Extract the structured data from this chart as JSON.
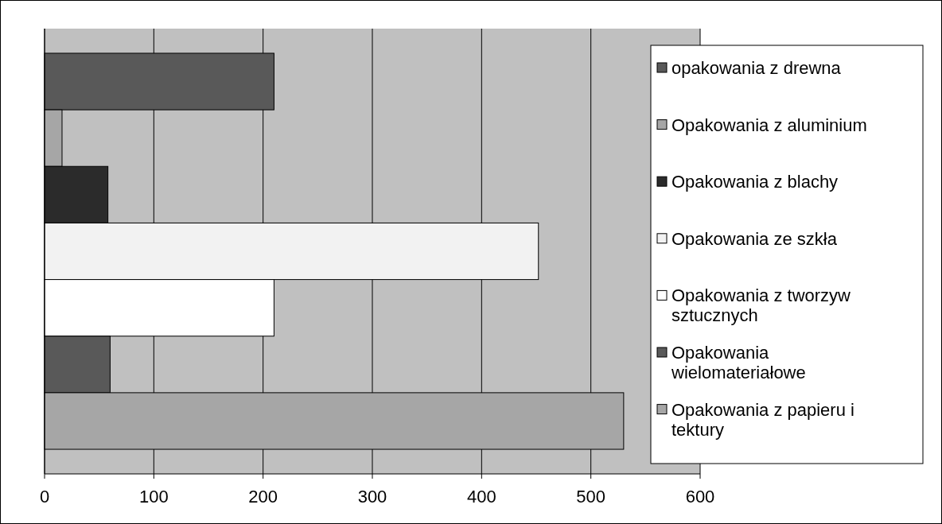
{
  "chart_data": {
    "type": "bar",
    "orientation": "horizontal",
    "categories": [
      null
    ],
    "series": [
      {
        "name": "opakowania z drewna",
        "color": "#595959",
        "values": [
          210
        ]
      },
      {
        "name": "Opakowania z aluminium",
        "color": "#a6a6a6",
        "values": [
          16
        ]
      },
      {
        "name": "Opakowania z blachy",
        "color": "#2b2b2b",
        "values": [
          58
        ]
      },
      {
        "name": "Opakowania ze szkła",
        "color": "#f2f2f2",
        "values": [
          452
        ]
      },
      {
        "name": "Opakowania z tworzyw sztucznych",
        "color": "#ffffff",
        "values": [
          210
        ]
      },
      {
        "name": "Opakowania wielomateriałowe",
        "color": "#595959",
        "values": [
          60
        ]
      },
      {
        "name": "Opakowania z papieru i tektury",
        "color": "#a6a6a6",
        "values": [
          530
        ]
      }
    ],
    "xlim": [
      0,
      600
    ],
    "xticks": [
      0,
      100,
      200,
      300,
      400,
      500,
      600
    ],
    "grid": "x",
    "legend": "right"
  }
}
